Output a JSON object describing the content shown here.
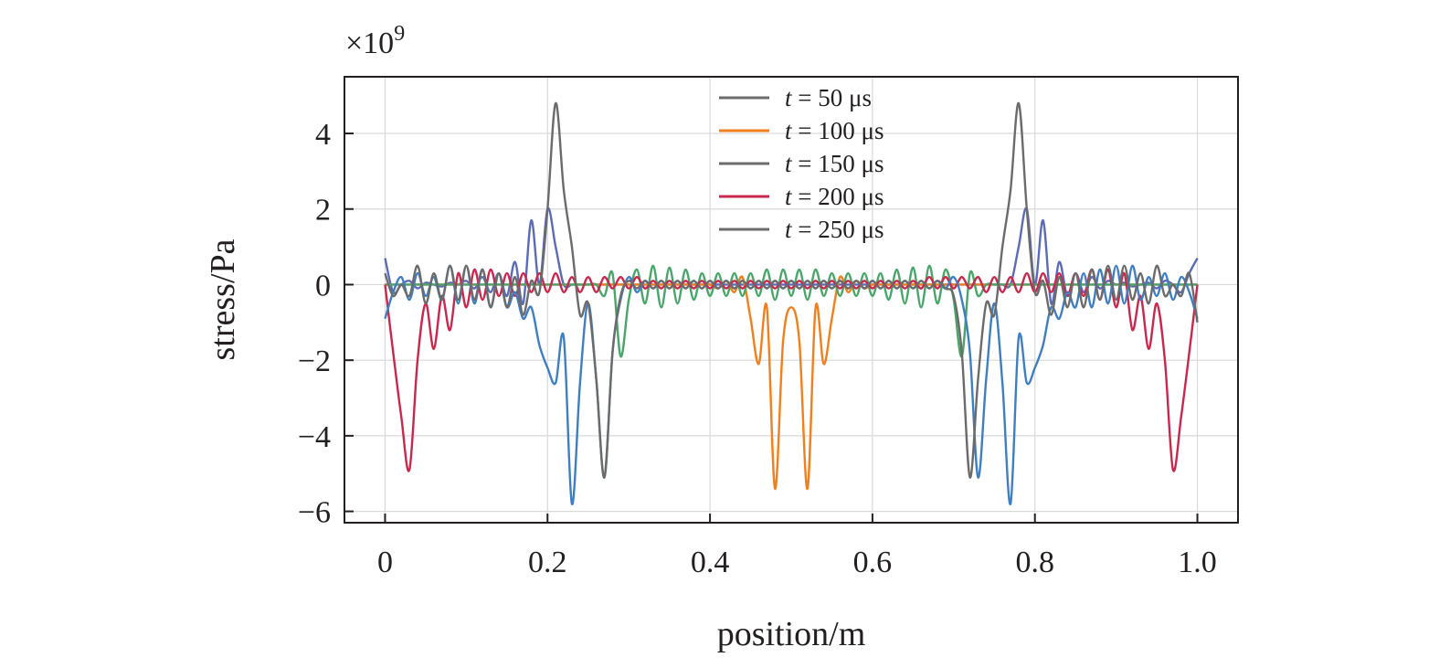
{
  "chart_data": {
    "type": "line",
    "title": "",
    "xlabel": "position/m",
    "ylabel": "stress/Pa",
    "y_multiplier_label": "×10",
    "y_multiplier_exponent": "9",
    "xlim": [
      -0.05,
      1.05
    ],
    "ylim": [
      -6.3,
      5.5
    ],
    "x_ticks": [
      0,
      0.2,
      0.4,
      0.6,
      0.8,
      1.0
    ],
    "x_tick_labels": [
      "0",
      "0.2",
      "0.4",
      "0.6",
      "0.8",
      "1.0"
    ],
    "y_ticks": [
      -6,
      -4,
      -2,
      0,
      2,
      4
    ],
    "y_tick_labels": [
      "−6",
      "−4",
      "−2",
      "0",
      "2",
      "4"
    ],
    "grid": true,
    "legend_position": "top-center",
    "x": [
      0,
      0.01,
      0.02,
      0.03,
      0.04,
      0.05,
      0.06,
      0.07,
      0.08,
      0.09,
      0.1,
      0.11,
      0.12,
      0.13,
      0.14,
      0.15,
      0.16,
      0.17,
      0.18,
      0.19,
      0.2,
      0.21,
      0.22,
      0.23,
      0.24,
      0.25,
      0.26,
      0.27,
      0.28,
      0.29,
      0.3,
      0.31,
      0.32,
      0.33,
      0.34,
      0.35,
      0.36,
      0.37,
      0.38,
      0.39,
      0.4,
      0.41,
      0.42,
      0.43,
      0.44,
      0.45,
      0.46,
      0.47,
      0.48,
      0.49,
      0.5,
      0.51,
      0.52,
      0.53,
      0.54,
      0.55,
      0.56,
      0.57,
      0.58,
      0.59,
      0.6,
      0.61,
      0.62,
      0.63,
      0.64,
      0.65,
      0.66,
      0.67,
      0.68,
      0.69,
      0.7,
      0.71,
      0.72,
      0.73,
      0.74,
      0.75,
      0.76,
      0.77,
      0.78,
      0.79,
      0.8,
      0.81,
      0.82,
      0.83,
      0.84,
      0.85,
      0.86,
      0.87,
      0.88,
      0.89,
      0.9,
      0.91,
      0.92,
      0.93,
      0.94,
      0.95,
      0.96,
      0.97,
      0.98,
      0.99,
      1.0
    ],
    "series": [
      {
        "legend_var": "t",
        "legend_value": " = 50 μs",
        "color": "#5c6bb5",
        "values": [
          0.7,
          -0.2,
          0.0,
          0.1,
          -0.1,
          0.05,
          0.0,
          -0.05,
          0.05,
          0.0,
          0.1,
          -0.1,
          0.2,
          -0.2,
          0.3,
          -0.3,
          0.6,
          -0.5,
          1.7,
          0.0,
          2.0,
          1.0,
          0.0,
          0.0,
          0.0,
          0.0,
          0.0,
          0.0,
          0.0,
          0.0,
          0.0,
          0.0,
          0.0,
          0.0,
          0.0,
          0.0,
          0.0,
          0.0,
          0.0,
          0.0,
          0.0,
          0.0,
          0.0,
          0.0,
          0.0,
          0.0,
          0.0,
          0.0,
          0.0,
          0.0,
          0.0,
          0.0,
          0.0,
          0.0,
          0.0,
          0.0,
          0.0,
          0.0,
          0.0,
          0.0,
          0.0,
          0.0,
          0.0,
          0.0,
          0.0,
          0.0,
          0.0,
          0.0,
          0.0,
          0.0,
          0.0,
          0.0,
          0.0,
          0.0,
          0.0,
          0.0,
          0.0,
          0.0,
          1.0,
          2.0,
          0.0,
          1.7,
          -0.5,
          0.6,
          -0.3,
          0.3,
          -0.2,
          0.2,
          -0.1,
          0.1,
          0.0,
          0.05,
          -0.05,
          0.0,
          0.05,
          -0.1,
          0.1,
          0.0,
          -0.2,
          0.3,
          0.7
        ]
      },
      {
        "legend_var": "t",
        "legend_value": " = 100 μs",
        "color": "#f07f1e",
        "values": [
          0,
          0,
          0,
          0,
          0,
          0,
          0,
          0,
          0,
          0,
          0,
          0,
          0,
          0,
          0,
          0,
          0,
          0,
          0,
          0,
          0,
          0,
          0,
          0,
          0,
          0,
          0,
          0,
          0,
          0,
          0,
          0,
          0,
          0,
          0,
          0,
          0,
          0,
          0,
          0,
          0.0,
          -0.1,
          0.1,
          -0.2,
          0.2,
          -0.9,
          -2.1,
          -0.6,
          -5.4,
          -1.5,
          -0.6,
          -1.5,
          -5.4,
          -0.6,
          -2.1,
          -0.9,
          0.2,
          -0.2,
          0.1,
          -0.1,
          0.0,
          0,
          0,
          0,
          0,
          0,
          0,
          0,
          0,
          0,
          0,
          0,
          0,
          0,
          0,
          0,
          0,
          0,
          0,
          0,
          0,
          0,
          0,
          0,
          0,
          0,
          0,
          0,
          0,
          0,
          0,
          0,
          0,
          0,
          0,
          0,
          0,
          0,
          0,
          0,
          0
        ]
      },
      {
        "legend_var": "t",
        "legend_value": " = 150 μs",
        "color": "#4aa56a",
        "values": [
          0,
          0,
          0,
          0,
          0,
          0,
          0,
          0,
          0,
          0,
          0,
          0,
          0,
          0,
          0,
          0,
          0,
          0,
          0,
          0,
          0,
          0,
          0,
          0,
          0,
          0,
          0.0,
          -0.3,
          0.3,
          -1.9,
          -0.4,
          0.4,
          -0.5,
          0.5,
          -0.6,
          0.45,
          -0.5,
          0.4,
          -0.4,
          0.3,
          -0.3,
          0.3,
          -0.3,
          0.3,
          -0.3,
          0.3,
          -0.3,
          0.4,
          -0.4,
          0.4,
          -0.3,
          0.4,
          -0.4,
          0.4,
          -0.3,
          0.3,
          -0.3,
          0.3,
          -0.3,
          0.3,
          -0.3,
          0.3,
          -0.4,
          0.4,
          -0.5,
          0.45,
          -0.6,
          0.5,
          -0.5,
          0.4,
          -0.4,
          -1.9,
          0.3,
          -0.3,
          0.0,
          0,
          0,
          0,
          0,
          0,
          0,
          0,
          0,
          0,
          0,
          0,
          0,
          0,
          0,
          0,
          0,
          0,
          0,
          0,
          0,
          0,
          0,
          0,
          0,
          0,
          0
        ]
      },
      {
        "legend_var": "t",
        "legend_value": " = 200 μs",
        "color": "#c8274e",
        "values": [
          0.0,
          -1.8,
          -3.5,
          -4.9,
          -2.0,
          -0.5,
          -1.7,
          -0.3,
          -1.2,
          0.3,
          -0.6,
          0.4,
          -0.4,
          0.4,
          -0.3,
          0.3,
          -0.3,
          0.3,
          -0.2,
          0.3,
          -0.2,
          0.3,
          -0.2,
          0.2,
          -0.2,
          0.2,
          -0.2,
          0.2,
          -0.1,
          0.2,
          -0.1,
          0.2,
          -0.1,
          0.1,
          -0.1,
          0.1,
          -0.1,
          0.1,
          -0.1,
          0.1,
          -0.1,
          0.1,
          -0.1,
          0.1,
          -0.1,
          0.1,
          -0.1,
          0.1,
          -0.1,
          0.1,
          -0.1,
          0.1,
          -0.1,
          0.1,
          -0.1,
          0.1,
          -0.1,
          0.1,
          -0.1,
          0.1,
          -0.1,
          0.1,
          -0.1,
          0.1,
          -0.1,
          0.1,
          -0.1,
          0.2,
          -0.1,
          0.2,
          -0.1,
          0.2,
          -0.1,
          0.2,
          -0.2,
          0.2,
          -0.2,
          0.2,
          -0.2,
          0.3,
          -0.2,
          0.3,
          -0.2,
          0.3,
          -0.3,
          0.3,
          -0.3,
          0.4,
          -0.4,
          0.4,
          -0.6,
          0.3,
          -1.2,
          -0.3,
          -1.7,
          -0.5,
          -2.0,
          -4.9,
          -3.5,
          -1.8,
          0.0
        ]
      },
      {
        "legend_var": "t",
        "legend_value": " = 250 μs",
        "color": "#3f7fc1",
        "values": [
          -0.9,
          -0.2,
          0.2,
          -0.4,
          0.3,
          -0.3,
          0.2,
          -0.4,
          0.5,
          -0.5,
          0.5,
          -0.5,
          0.4,
          -0.6,
          0.3,
          -0.6,
          -0.2,
          -0.9,
          -0.6,
          -1.6,
          -2.2,
          -2.6,
          -1.4,
          -5.8,
          -2.6,
          -0.5,
          -2.5,
          -5.1,
          -1.8,
          -0.4,
          0.2,
          -0.2,
          0.1,
          -0.1,
          0.1,
          -0.1,
          0.1,
          -0.1,
          0.1,
          -0.1,
          0.1,
          -0.1,
          0.1,
          -0.1,
          0.1,
          -0.1,
          0.1,
          -0.1,
          0.1,
          -0.1,
          0.1,
          -0.1,
          0.1,
          -0.1,
          0.1,
          -0.1,
          0.1,
          -0.1,
          0.1,
          -0.1,
          0.1,
          -0.1,
          0.1,
          -0.1,
          0.1,
          -0.1,
          0.1,
          -0.1,
          0.1,
          -0.1,
          0.2,
          -0.4,
          -1.8,
          -5.1,
          -2.5,
          -0.5,
          -2.6,
          -5.8,
          -1.4,
          -2.6,
          -2.2,
          -1.6,
          -0.6,
          -0.9,
          -0.2,
          -0.6,
          0.3,
          -0.6,
          0.4,
          -0.5,
          0.5,
          -0.5,
          0.5,
          -0.4,
          0.2,
          -0.3,
          0.3,
          -0.4,
          0.2,
          -0.2,
          -0.9
        ]
      },
      {
        "color": "#6b6b6b",
        "values": [
          0.3,
          -0.3,
          0.0,
          -0.3,
          0.5,
          -0.5,
          0.3,
          -0.4,
          0.5,
          -0.4,
          0.5,
          -0.4,
          0.4,
          -0.6,
          0.3,
          -0.6,
          0.2,
          -0.8,
          0.1,
          -0.2,
          2.0,
          4.8,
          2.5,
          1.0,
          -0.8,
          -0.5,
          -2.5,
          -5.1,
          -1.8,
          -0.3,
          0.1,
          -0.1,
          0.1,
          -0.1,
          0.1,
          -0.1,
          0.1,
          -0.1,
          0.1,
          -0.1,
          0.1,
          -0.1,
          0.1,
          -0.1,
          0.1,
          -0.1,
          0.1,
          -0.1,
          0.1,
          -0.1,
          0.1,
          -0.1,
          0.1,
          -0.1,
          0.1,
          -0.1,
          0.1,
          -0.1,
          0.1,
          -0.1,
          0.1,
          -0.1,
          0.1,
          -0.1,
          0.1,
          -0.1,
          0.1,
          -0.1,
          0.1,
          -0.1,
          -0.3,
          -1.8,
          -5.1,
          -2.5,
          -0.5,
          -0.8,
          1.0,
          2.5,
          4.8,
          2.0,
          -0.2,
          0.1,
          -0.8,
          0.2,
          -0.6,
          0.3,
          -0.6,
          0.4,
          -0.4,
          0.5,
          -0.4,
          0.5,
          -0.4,
          0.3,
          -0.5,
          0.5,
          -0.3,
          0.0,
          -0.3,
          0.3,
          -1.0
        ]
      }
    ],
    "legend_line_color": "#6b6b6b"
  }
}
